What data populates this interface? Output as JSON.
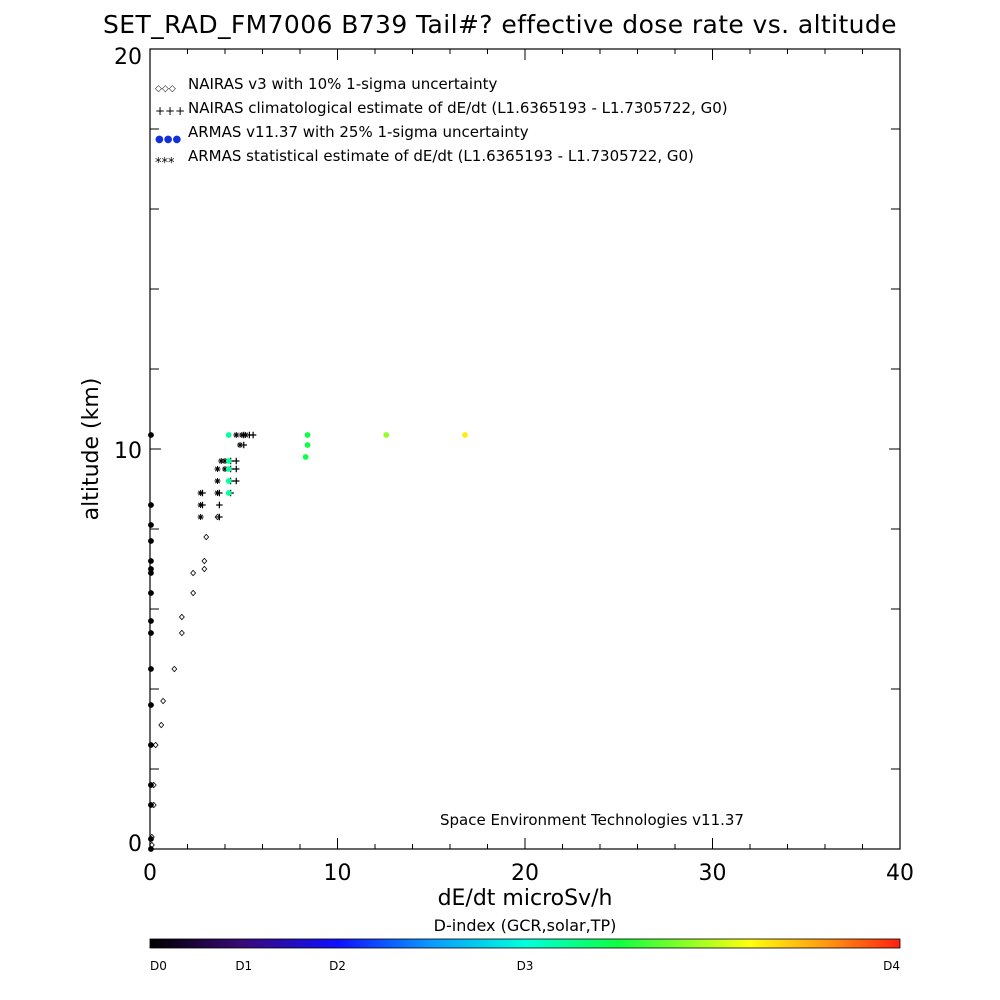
{
  "chart_data": {
    "type": "scatter",
    "title": "SET_RAD_FM7006  B739 Tail#? effective dose rate vs. altitude",
    "xlabel": "dE/dt microSv/h",
    "ylabel": "altitude (km)",
    "xlim": [
      0,
      40
    ],
    "ylim": [
      0,
      20
    ],
    "x_ticks": [
      "0",
      "10",
      "20",
      "30",
      "40"
    ],
    "y_ticks": [
      "0",
      "10",
      "20"
    ],
    "credit": "Space Environment Technologies v11.37",
    "legend_position": "top-left",
    "legend": [
      {
        "symbol": "◇◇◇",
        "label": "NAIRAS v3 with 10% 1-sigma uncertainty",
        "color": "#000000"
      },
      {
        "symbol": "+++",
        "label": "NAIRAS climatological estimate of dE/dt (L1.6365193 - L1.7305722, G0)",
        "color": "#000000"
      },
      {
        "symbol": "●●●",
        "label": "ARMAS v11.37 with 25% 1-sigma uncertainty",
        "color": "#1030dd"
      },
      {
        "symbol": "***",
        "label": "ARMAS statistical estimate of dE/dt (L1.6365193 - L1.7305722, G0)",
        "color": "#000000"
      }
    ],
    "colorbar": {
      "title": "D-index (GCR,solar,TP)",
      "labels": [
        {
          "text": "D0",
          "value": 0
        },
        {
          "text": "D1",
          "value": 5
        },
        {
          "text": "D2",
          "value": 10
        },
        {
          "text": "D3",
          "value": 20
        },
        {
          "text": "D4",
          "value": 40
        }
      ]
    },
    "series": [
      {
        "kind": "nairas_v3_diamond",
        "points": [
          {
            "x": 0.1,
            "y": 0.1
          },
          {
            "x": 0.1,
            "y": 0.3
          },
          {
            "x": 0.2,
            "y": 1.1
          },
          {
            "x": 0.2,
            "y": 1.6
          },
          {
            "x": 0.3,
            "y": 2.6
          },
          {
            "x": 0.6,
            "y": 3.1
          },
          {
            "x": 0.7,
            "y": 3.7
          },
          {
            "x": 1.3,
            "y": 4.5
          },
          {
            "x": 1.7,
            "y": 5.4
          },
          {
            "x": 1.7,
            "y": 5.8
          },
          {
            "x": 2.3,
            "y": 6.4
          },
          {
            "x": 2.3,
            "y": 6.9
          },
          {
            "x": 2.9,
            "y": 7.0
          },
          {
            "x": 2.9,
            "y": 7.2
          },
          {
            "x": 3.0,
            "y": 7.8
          },
          {
            "x": 3.6,
            "y": 8.3
          }
        ]
      },
      {
        "kind": "nairas_climatological_plus",
        "points": [
          {
            "x": 2.8,
            "y": 8.6
          },
          {
            "x": 2.8,
            "y": 8.9
          },
          {
            "x": 3.7,
            "y": 8.3
          },
          {
            "x": 3.7,
            "y": 8.6
          },
          {
            "x": 3.7,
            "y": 8.9
          },
          {
            "x": 4.3,
            "y": 8.9
          },
          {
            "x": 4.3,
            "y": 9.2
          },
          {
            "x": 4.3,
            "y": 9.5
          },
          {
            "x": 4.3,
            "y": 9.7
          },
          {
            "x": 4.6,
            "y": 9.2
          },
          {
            "x": 4.6,
            "y": 9.5
          },
          {
            "x": 4.6,
            "y": 9.7
          },
          {
            "x": 5.0,
            "y": 10.1
          },
          {
            "x": 5.0,
            "y": 10.35
          },
          {
            "x": 5.3,
            "y": 10.35
          },
          {
            "x": 5.5,
            "y": 10.35
          }
        ]
      },
      {
        "kind": "armas_statistical_star",
        "points": [
          {
            "x": 2.7,
            "y": 8.3
          },
          {
            "x": 2.7,
            "y": 8.6
          },
          {
            "x": 2.7,
            "y": 8.9
          },
          {
            "x": 3.6,
            "y": 8.9
          },
          {
            "x": 3.6,
            "y": 9.2
          },
          {
            "x": 3.6,
            "y": 9.5
          },
          {
            "x": 3.8,
            "y": 9.7
          },
          {
            "x": 4.0,
            "y": 9.5
          },
          {
            "x": 4.0,
            "y": 9.7
          },
          {
            "x": 4.8,
            "y": 10.1
          },
          {
            "x": 4.6,
            "y": 10.35
          },
          {
            "x": 4.9,
            "y": 10.35
          },
          {
            "x": 5.1,
            "y": 10.35
          }
        ]
      },
      {
        "kind": "armas_measured_dot",
        "points": [
          {
            "x": 0.05,
            "y": 0.0,
            "c": 0.0
          },
          {
            "x": 0.05,
            "y": 0.25,
            "c": 0.0
          },
          {
            "x": 0.05,
            "y": 1.1,
            "c": 0.0
          },
          {
            "x": 0.05,
            "y": 1.6,
            "c": 0.0
          },
          {
            "x": 0.05,
            "y": 2.6,
            "c": 0.0
          },
          {
            "x": 0.05,
            "y": 3.6,
            "c": 0.0
          },
          {
            "x": 0.05,
            "y": 4.5,
            "c": 0.0
          },
          {
            "x": 0.05,
            "y": 5.4,
            "c": 0.0
          },
          {
            "x": 0.05,
            "y": 5.7,
            "c": 0.0
          },
          {
            "x": 0.05,
            "y": 6.4,
            "c": 0.0
          },
          {
            "x": 0.05,
            "y": 6.9,
            "c": 0.0
          },
          {
            "x": 0.05,
            "y": 7.0,
            "c": 0.0
          },
          {
            "x": 0.05,
            "y": 7.2,
            "c": 0.0
          },
          {
            "x": 0.05,
            "y": 7.7,
            "c": 0.0
          },
          {
            "x": 0.05,
            "y": 8.1,
            "c": 0.0
          },
          {
            "x": 0.05,
            "y": 8.6,
            "c": 0.0
          },
          {
            "x": 0.05,
            "y": 10.35,
            "c": 0.0
          },
          {
            "x": 4.2,
            "y": 8.9,
            "c": 0.55
          },
          {
            "x": 4.2,
            "y": 9.2,
            "c": 0.55
          },
          {
            "x": 4.2,
            "y": 9.5,
            "c": 0.55
          },
          {
            "x": 4.2,
            "y": 9.7,
            "c": 0.55
          },
          {
            "x": 4.2,
            "y": 10.35,
            "c": 0.55
          },
          {
            "x": 8.3,
            "y": 9.8,
            "c": 0.62
          },
          {
            "x": 8.4,
            "y": 10.1,
            "c": 0.62
          },
          {
            "x": 8.4,
            "y": 10.35,
            "c": 0.62
          },
          {
            "x": 12.6,
            "y": 10.35,
            "c": 0.72
          },
          {
            "x": 16.8,
            "y": 10.35,
            "c": 0.82
          }
        ]
      }
    ]
  }
}
